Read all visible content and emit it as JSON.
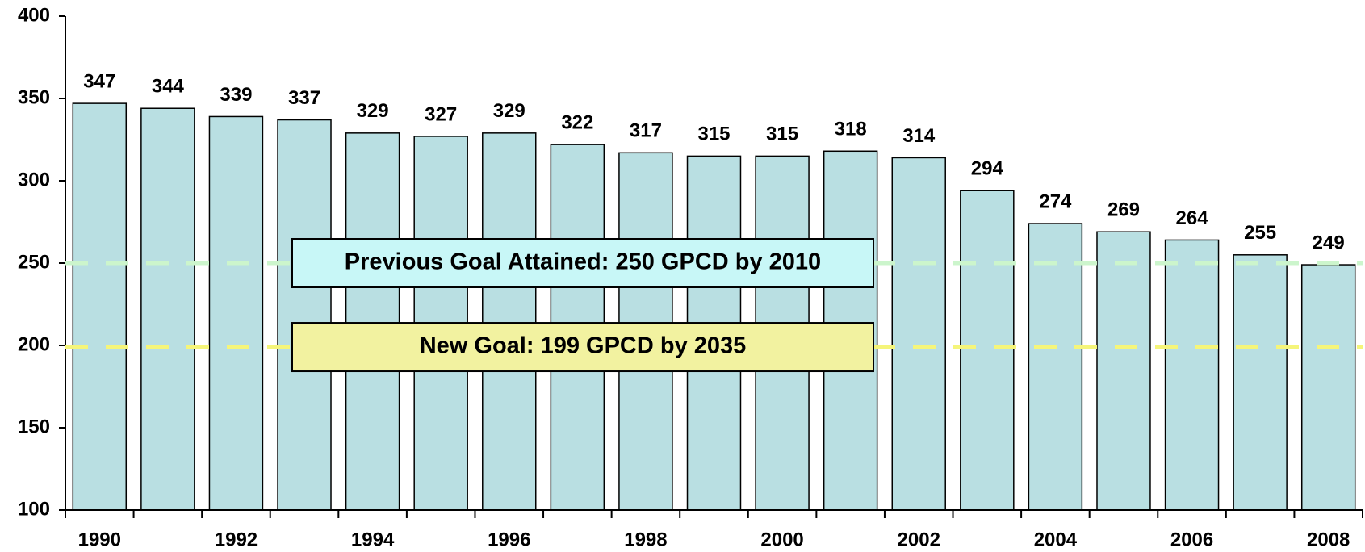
{
  "chart_data": {
    "type": "bar",
    "categories": [
      "1990",
      null,
      "1992",
      null,
      "1994",
      null,
      "1996",
      null,
      "1998",
      null,
      "2000",
      null,
      "2002",
      null,
      "2004",
      null,
      "2006",
      null,
      "2008"
    ],
    "values": [
      347,
      344,
      339,
      337,
      329,
      327,
      329,
      322,
      317,
      315,
      315,
      318,
      314,
      294,
      274,
      269,
      264,
      255,
      249
    ],
    "color": "#b9dfe2",
    "ylim": [
      100,
      400
    ],
    "yticks": [
      100,
      150,
      200,
      250,
      300,
      350,
      400
    ],
    "reference_lines": [
      {
        "value": 250,
        "color": "#ccf5cc",
        "box_color": "#c8f7f7",
        "label": "Previous Goal Attained: 250 GPCD by 2010"
      },
      {
        "value": 199,
        "color": "#f5f57a",
        "box_color": "#f2f2a0",
        "label": "New Goal: 199 GPCD by 2035"
      }
    ]
  }
}
